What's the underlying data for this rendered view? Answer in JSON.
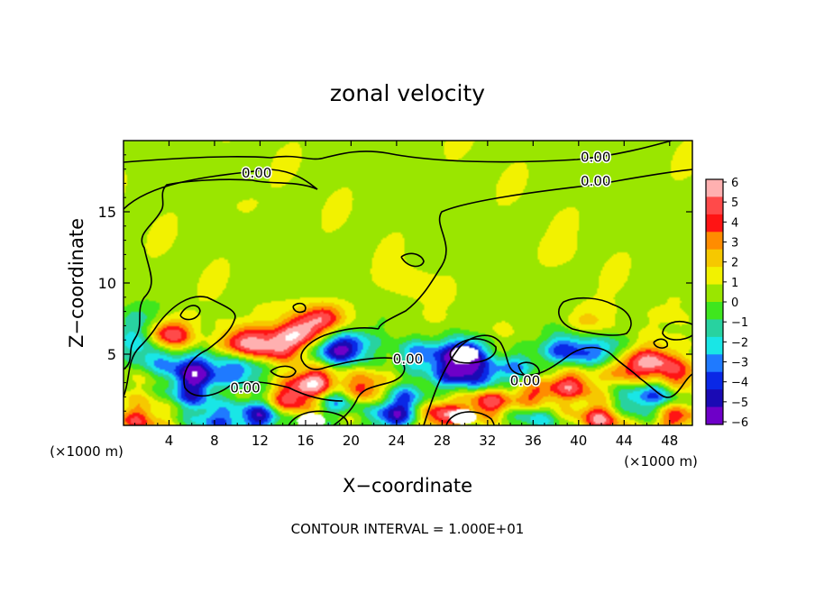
{
  "chart_data": {
    "type": "heatmap",
    "title": "zonal velocity",
    "xlabel": "X−coordinate",
    "ylabel": "Z−coordinate",
    "x_unit_label": "(×1000 m)",
    "x_unit_label_right": "(×1000 m)",
    "footer": "CONTOUR INTERVAL = 1.000E+01",
    "xlim": [
      0,
      50
    ],
    "ylim": [
      0,
      20
    ],
    "x_ticks": [
      4,
      8,
      12,
      16,
      20,
      24,
      28,
      32,
      36,
      40,
      44,
      48
    ],
    "x_tick_labels": [
      "4",
      "8",
      "12",
      "16",
      "20",
      "24",
      "28",
      "32",
      "36",
      "40",
      "44",
      "48"
    ],
    "y_ticks": [
      5,
      10,
      15
    ],
    "y_tick_labels": [
      "5",
      "10",
      "15"
    ],
    "colorbar": {
      "levels": [
        6,
        5,
        4,
        3,
        2,
        1,
        0,
        -1,
        -2,
        -3,
        -4,
        -5,
        -6
      ],
      "labels": [
        "6",
        "5",
        "4",
        "3",
        "2",
        "1",
        "0",
        "−1",
        "−2",
        "−3",
        "−4",
        "−5",
        "−6"
      ],
      "colors": [
        "#ffb0b0",
        "#ff4a4a",
        "#ff1414",
        "#ff8c00",
        "#f6c800",
        "#f2f200",
        "#9ae600",
        "#3fe61e",
        "#28d2a0",
        "#19e6e6",
        "#1f7aff",
        "#0a28e6",
        "#1a0ab4",
        "#6e00c8"
      ],
      "over_color": "#ffffff"
    },
    "contour_labels": [
      {
        "text": "0.00",
        "x": 11.7,
        "y": 17.8
      },
      {
        "text": "0.00",
        "x": 41.5,
        "y": 18.9
      },
      {
        "text": "0.00",
        "x": 41.5,
        "y": 17.2
      },
      {
        "text": "0.00",
        "x": 25.0,
        "y": 4.7
      },
      {
        "text": "0.00",
        "x": 35.3,
        "y": 3.2
      },
      {
        "text": "0.00",
        "x": 10.7,
        "y": 2.7
      }
    ],
    "anomalies": [
      {
        "x": 4.0,
        "z": 6.3,
        "value": 5.0
      },
      {
        "x": 3.2,
        "z": 4.6,
        "value": -3.0
      },
      {
        "x": 1.3,
        "z": 7.4,
        "value": -1.5
      },
      {
        "x": 1.2,
        "z": 5.8,
        "value": -2.5
      },
      {
        "x": 6.3,
        "z": 3.8,
        "value": -5.5
      },
      {
        "x": 6.0,
        "z": 2.2,
        "value": -4.0
      },
      {
        "x": 10.5,
        "z": 5.8,
        "value": 4.5
      },
      {
        "x": 10.2,
        "z": 3.9,
        "value": -4.0
      },
      {
        "x": 13.5,
        "z": 5.5,
        "value": 4.0
      },
      {
        "x": 15.5,
        "z": 6.5,
        "value": 4.5
      },
      {
        "x": 17.5,
        "z": 7.6,
        "value": 4.0
      },
      {
        "x": 16.8,
        "z": 3.0,
        "value": 5.0
      },
      {
        "x": 21.0,
        "z": 2.6,
        "value": 4.0
      },
      {
        "x": 19.0,
        "z": 1.8,
        "value": -3.5
      },
      {
        "x": 14.5,
        "z": 1.8,
        "value": 4.0
      },
      {
        "x": 20.0,
        "z": 5.6,
        "value": -3.0
      },
      {
        "x": 18.5,
        "z": 5.2,
        "value": -4.5
      },
      {
        "x": 24.5,
        "z": 1.8,
        "value": -3.5
      },
      {
        "x": 26.0,
        "z": 5.0,
        "value": -3.5
      },
      {
        "x": 30.0,
        "z": 5.0,
        "value": -6.8
      },
      {
        "x": 29.0,
        "z": 3.6,
        "value": -4.0
      },
      {
        "x": 31.5,
        "z": 3.4,
        "value": -3.5
      },
      {
        "x": 34.5,
        "z": 4.0,
        "value": -3.0
      },
      {
        "x": 32.0,
        "z": 1.6,
        "value": 4.5
      },
      {
        "x": 36.0,
        "z": 2.0,
        "value": 3.0
      },
      {
        "x": 39.5,
        "z": 2.8,
        "value": 4.0
      },
      {
        "x": 38.8,
        "z": 5.3,
        "value": -4.5
      },
      {
        "x": 42.0,
        "z": 5.2,
        "value": -3.0
      },
      {
        "x": 41.0,
        "z": 7.3,
        "value": 1.5
      },
      {
        "x": 44.0,
        "z": 4.0,
        "value": 3.0
      },
      {
        "x": 46.5,
        "z": 4.5,
        "value": 4.0
      },
      {
        "x": 48.5,
        "z": 3.5,
        "value": 3.5
      },
      {
        "x": 47.0,
        "z": 2.2,
        "value": -3.0
      },
      {
        "x": 44.5,
        "z": 1.6,
        "value": -2.5
      },
      {
        "x": 28.0,
        "z": 0.7,
        "value": 4.5
      },
      {
        "x": 36.0,
        "z": 0.6,
        "value": -3.0
      },
      {
        "x": 23.5,
        "z": 0.5,
        "value": -4.5
      },
      {
        "x": 12.0,
        "z": 0.6,
        "value": -5.0
      },
      {
        "x": 1.5,
        "z": 0.4,
        "value": 3.0
      },
      {
        "x": 8.0,
        "z": 0.4,
        "value": -4.0
      },
      {
        "x": 42.0,
        "z": 0.5,
        "value": 4.0
      },
      {
        "x": 48.5,
        "z": 0.5,
        "value": 3.5
      },
      {
        "x": 25.0,
        "z": 10.0,
        "value": 0.7
      },
      {
        "x": 10.0,
        "z": 15.5,
        "value": 0.6
      },
      {
        "x": 38.0,
        "z": 12.0,
        "value": 0.4
      }
    ],
    "saturated_regions": [
      {
        "x": 30.0,
        "z": 5.0,
        "value": -7.0
      },
      {
        "x": 16.5,
        "z": 0.3,
        "value": 7.0
      },
      {
        "x": 29.8,
        "z": 0.6,
        "value": 7.0
      }
    ]
  }
}
